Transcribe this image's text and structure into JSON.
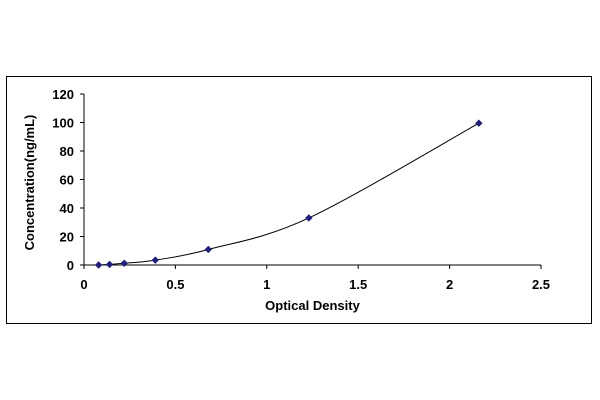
{
  "chart_data": {
    "type": "scatter",
    "title": "",
    "xlabel": "Optical Density",
    "ylabel": "Concentration(ng/mL)",
    "xlim": [
      0,
      2.5
    ],
    "ylim": [
      0,
      120
    ],
    "x_ticks": [
      0,
      0.5,
      1,
      1.5,
      2,
      2.5
    ],
    "x_tick_labels": [
      "0",
      "0.5",
      "1",
      "1.5",
      "2",
      "2.5"
    ],
    "y_ticks": [
      0,
      20,
      40,
      60,
      80,
      100,
      120
    ],
    "y_tick_labels": [
      "0",
      "20",
      "40",
      "60",
      "80",
      "100",
      "120"
    ],
    "grid": false,
    "legend": "none",
    "series": [
      {
        "x": [
          0.08,
          0.14,
          0.22,
          0.39,
          0.68,
          1.23,
          2.16
        ],
        "y": [
          0,
          0.4,
          1.2,
          3.4,
          10.9,
          33,
          99.5
        ],
        "marker": "diamond",
        "color": "#1f1f7a",
        "fit_line": true
      }
    ]
  }
}
